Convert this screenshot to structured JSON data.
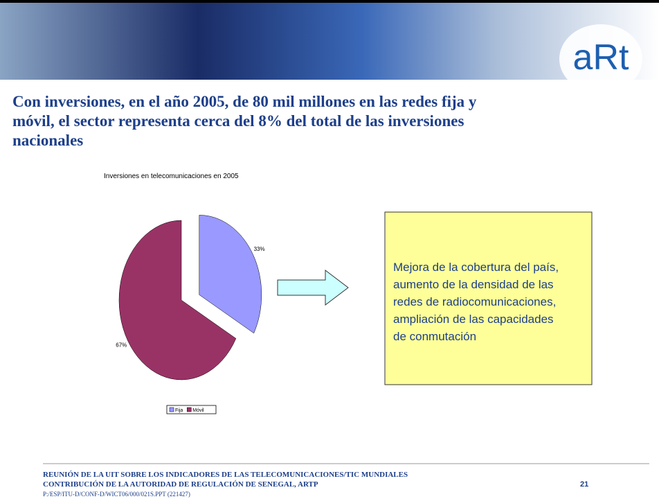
{
  "header": {
    "logo": "aRt",
    "title": [
      "Con inversiones, en el año 2005, de 80 mil millones en las redes fija y",
      "móvil, el sector representa cerca del 8% del total de las inversiones",
      "nacionales"
    ]
  },
  "chart_data": {
    "type": "pie",
    "title": "Inversiones en telecomunicaciones en 2005",
    "categories": [
      "Fija",
      "Móvil"
    ],
    "values": [
      33,
      67
    ],
    "value_labels": [
      "33%",
      "67%"
    ],
    "colors": [
      "#9999ff",
      "#993366"
    ],
    "exploded": [
      true,
      false
    ]
  },
  "callout": {
    "text": [
      "Mejora de la cobertura del país,",
      "aumento de la densidad de las",
      "redes de radiocomunicaciones,",
      "ampliación de las capacidades",
      "de conmutación"
    ]
  },
  "footer": {
    "lines": [
      "REUNIÓN DE LA UIT SOBRE LOS INDICADORES DE LAS TELECOMUNICACIONES/TIC MUNDIALES",
      "CONTRIBUCIÓN DE LA AUTORIDAD DE REGULACIÓN DE SENEGAL, ARTP"
    ],
    "page": "21",
    "path": "P:/ESP/ITU-D/CONF-D/WICT06/000/021S.PPT (221427)"
  }
}
